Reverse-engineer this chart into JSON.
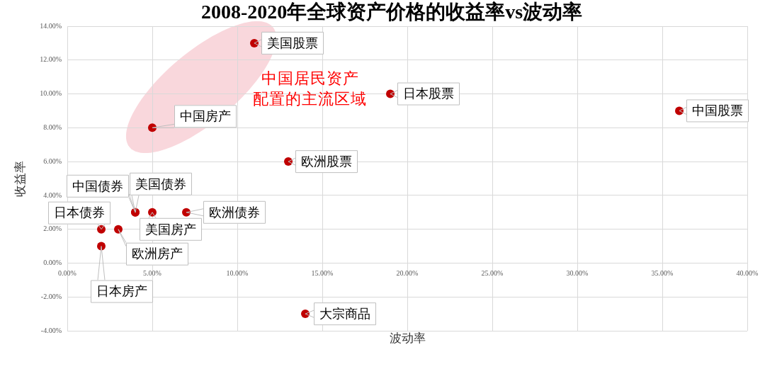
{
  "chart_data": {
    "type": "scatter",
    "title": "2008-2020年全球资产价格的收益率vs波动率",
    "xlabel": "波动率",
    "ylabel": "收益率",
    "annotations": [
      "中国居民资产",
      "配置的主流区域"
    ],
    "xlim": [
      0,
      40
    ],
    "ylim": [
      -4,
      14
    ],
    "xticks": [
      {
        "value": 0,
        "label": "0.00%"
      },
      {
        "value": 5,
        "label": "5.00%"
      },
      {
        "value": 10,
        "label": "10.00%"
      },
      {
        "value": 15,
        "label": "15.00%"
      },
      {
        "value": 20,
        "label": "20.00%"
      },
      {
        "value": 25,
        "label": "25.00%"
      },
      {
        "value": 30,
        "label": "30.00%"
      },
      {
        "value": 35,
        "label": "35.00%"
      },
      {
        "value": 40,
        "label": "40.00%"
      }
    ],
    "yticks": [
      {
        "value": -4,
        "label": "-4.00%"
      },
      {
        "value": -2,
        "label": "-2.00%"
      },
      {
        "value": 0,
        "label": "0.00%"
      },
      {
        "value": 2,
        "label": "2.00%"
      },
      {
        "value": 4,
        "label": "4.00%"
      },
      {
        "value": 6,
        "label": "6.00%"
      },
      {
        "value": 8,
        "label": "8.00%"
      },
      {
        "value": 10,
        "label": "10.00%"
      },
      {
        "value": 12,
        "label": "12.00%"
      },
      {
        "value": 14,
        "label": "14.00%"
      }
    ],
    "grid": true,
    "marker": "circle",
    "series": [
      {
        "name": "美国股票",
        "color": "#c00000",
        "x": [
          11
        ],
        "values": [
          13
        ]
      },
      {
        "name": "中国房产",
        "color": "#c00000",
        "x": [
          5
        ],
        "values": [
          8
        ]
      },
      {
        "name": "日本股票",
        "color": "#c00000",
        "x": [
          19
        ],
        "values": [
          10
        ]
      },
      {
        "name": "中国股票",
        "color": "#c00000",
        "x": [
          36
        ],
        "values": [
          9
        ]
      },
      {
        "name": "欧洲股票",
        "color": "#c00000",
        "x": [
          13
        ],
        "values": [
          6
        ]
      },
      {
        "name": "中国债券",
        "color": "#c00000",
        "x": [
          4
        ],
        "values": [
          3
        ]
      },
      {
        "name": "美国房产",
        "color": "#c00000",
        "x": [
          5
        ],
        "values": [
          3
        ]
      },
      {
        "name": "美国债券",
        "color": "#c00000",
        "x": [
          4
        ],
        "values": [
          3
        ]
      },
      {
        "name": "欧洲债券",
        "color": "#c00000",
        "x": [
          7
        ],
        "values": [
          3
        ]
      },
      {
        "name": "日本债券",
        "color": "#c00000",
        "x": [
          2
        ],
        "values": [
          2
        ]
      },
      {
        "name": "欧洲房产",
        "color": "#c00000",
        "x": [
          3
        ],
        "values": [
          2
        ]
      },
      {
        "name": "日本房产",
        "color": "#c00000",
        "x": [
          2
        ],
        "values": [
          1
        ]
      },
      {
        "name": "大宗商品",
        "color": "#c00000",
        "x": [
          14
        ],
        "values": [
          -3
        ]
      }
    ]
  }
}
